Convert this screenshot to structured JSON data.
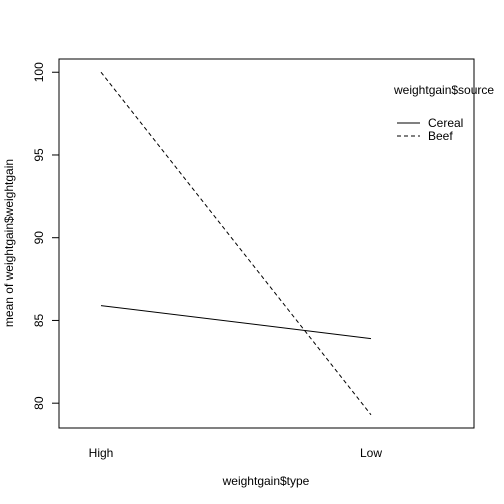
{
  "chart_data": {
    "type": "line",
    "title": "",
    "xlabel": "weightgain$type",
    "ylabel": "mean of weightgain$weightgain",
    "categories": [
      "High",
      "Low"
    ],
    "ylim": [
      78.5,
      100.8
    ],
    "yticks": [
      80,
      85,
      90,
      95,
      100
    ],
    "grid": false,
    "legend": {
      "title": "weightgain$source",
      "placement": "top-right",
      "entries": [
        "Cereal",
        "Beef"
      ]
    },
    "series": [
      {
        "name": "Cereal",
        "values": [
          85.9,
          83.9
        ],
        "line_style": "solid",
        "color": "#000000"
      },
      {
        "name": "Beef",
        "values": [
          100.0,
          79.3
        ],
        "line_style": "dashed",
        "color": "#000000"
      }
    ]
  }
}
